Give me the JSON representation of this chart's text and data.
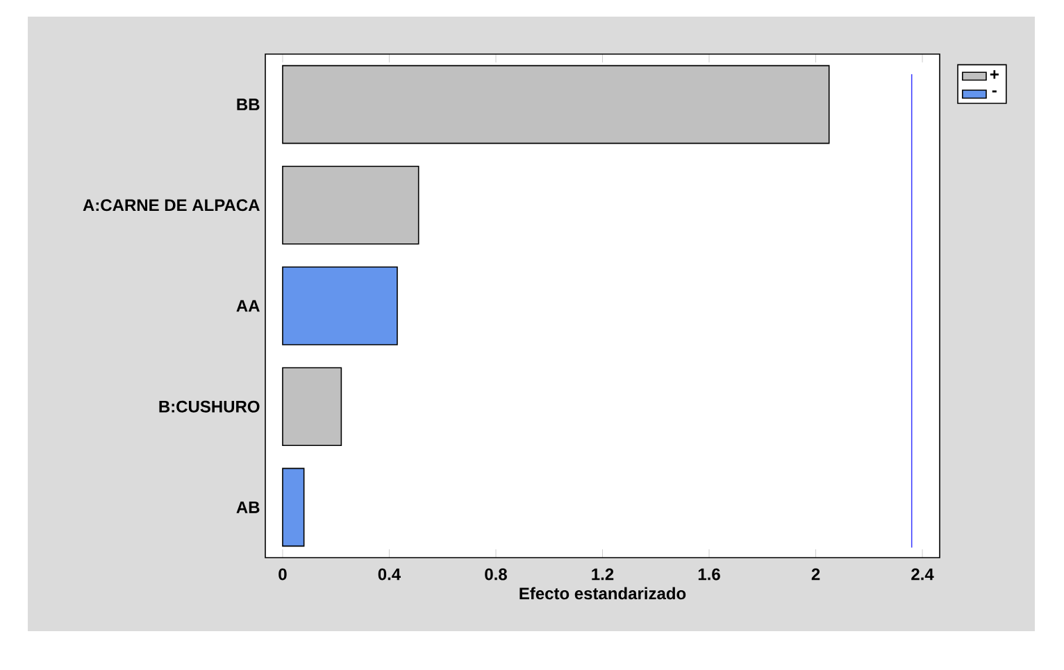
{
  "chart_data": {
    "type": "bar",
    "orientation": "horizontal",
    "xlabel": "Efecto estandarizado",
    "categories": [
      "BB",
      "A:CARNE DE ALPACA",
      "AA",
      "B:CUSHURO",
      "AB"
    ],
    "series": [
      {
        "name": "+",
        "color": "#c0c0c0",
        "values": [
          2.05,
          0.51,
          null,
          0.22,
          null
        ]
      },
      {
        "name": "-",
        "color": "#6495ed",
        "values": [
          null,
          null,
          0.43,
          null,
          0.08
        ]
      }
    ],
    "xlim": [
      -0.065,
      2.465
    ],
    "xticks": [
      0,
      0.4,
      0.8,
      1.2,
      1.6,
      2,
      2.4
    ],
    "ref_lines": [
      {
        "axis": "x",
        "value": 2.36,
        "color": "#4040ff"
      }
    ],
    "legend": "top right",
    "grid": false
  }
}
